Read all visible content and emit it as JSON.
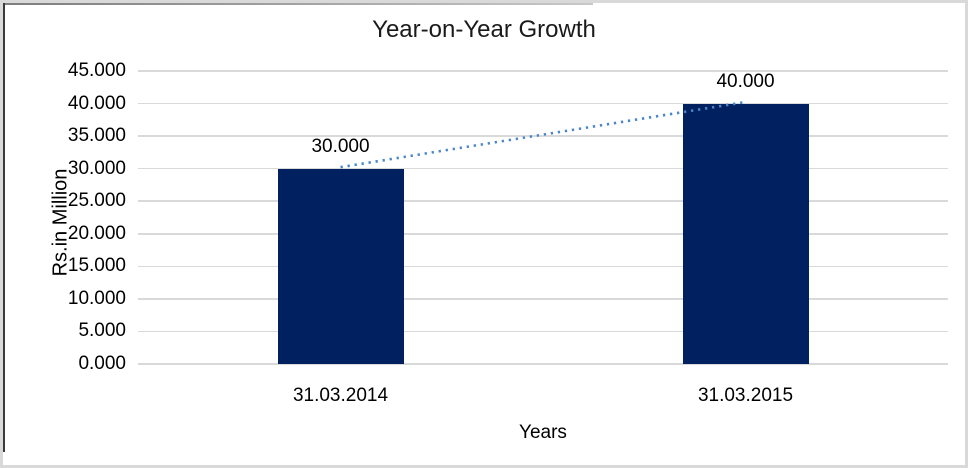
{
  "chart_data": {
    "type": "bar",
    "title": "Year-on-Year Growth",
    "xlabel": "Years",
    "ylabel": "Rs.in Million",
    "categories": [
      "31.03.2014",
      "31.03.2015"
    ],
    "values": [
      30.0,
      40.0
    ],
    "data_labels": [
      "30.000",
      "40.000"
    ],
    "ylim": [
      0,
      45
    ],
    "ytick_step": 5,
    "yticks": [
      "45.000",
      "40.000",
      "35.000",
      "30.000",
      "25.000",
      "20.000",
      "15.000",
      "10.000",
      "5.000",
      "0.000"
    ],
    "grid": true,
    "legend": "none",
    "colors": {
      "bar_fill": "#002060",
      "trendline": "#4a86c8",
      "gridline": "#d9d9d9",
      "text": "#000000"
    },
    "trendline": {
      "type": "linear",
      "style": "dotted",
      "from_value": 30.0,
      "to_value": 40.0
    }
  }
}
